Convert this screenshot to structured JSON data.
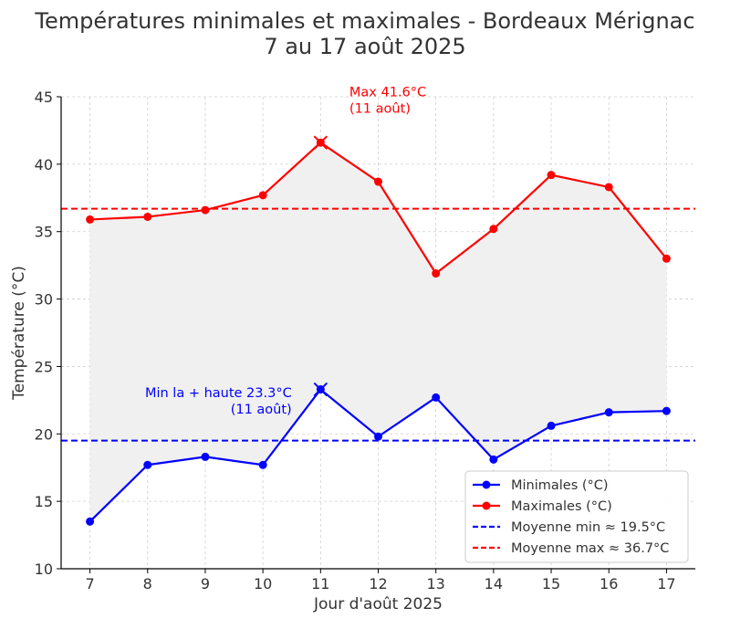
{
  "chart_data": {
    "type": "line",
    "title": "Températures minimales et maximales - Bordeaux Mérignac",
    "subtitle": "7 au 17 août 2025",
    "xlabel": "Jour d'août 2025",
    "ylabel": "Température (°C)",
    "x": [
      7,
      8,
      9,
      10,
      11,
      12,
      13,
      14,
      15,
      16,
      17
    ],
    "xlim": [
      6.5,
      17.5
    ],
    "ylim": [
      10,
      45
    ],
    "yticks": [
      10,
      15,
      20,
      25,
      30,
      35,
      40,
      45
    ],
    "grid": true,
    "series": [
      {
        "name": "Minimales (°C)",
        "color": "#0000ff",
        "marker": "circle",
        "values": [
          13.5,
          17.7,
          18.3,
          17.7,
          23.3,
          19.8,
          22.7,
          18.1,
          20.6,
          21.6,
          21.7
        ]
      },
      {
        "name": "Maximales (°C)",
        "color": "#ff0000",
        "marker": "circle",
        "values": [
          35.9,
          36.1,
          36.6,
          37.7,
          41.6,
          38.7,
          31.9,
          35.2,
          39.2,
          38.3,
          33.0
        ]
      }
    ],
    "fill_between": {
      "color": "#f0f0f0"
    },
    "reference_lines": [
      {
        "name": "Moyenne min ≈ 19.5°C",
        "value": 19.5,
        "color": "#0000ff",
        "style": "dashed"
      },
      {
        "name": "Moyenne max ≈ 36.7°C",
        "value": 36.7,
        "color": "#ff0000",
        "style": "dashed"
      }
    ],
    "annotations": [
      {
        "name": "max",
        "lines": [
          "Max 41.6°C",
          "(11 août)"
        ],
        "point": {
          "x": 11,
          "y": 41.6
        },
        "color": "#ff0000",
        "text_at": {
          "x": 11.5,
          "y": 43.8
        },
        "align": "left"
      },
      {
        "name": "min",
        "lines": [
          "Min la + haute 23.3°C",
          "(11 août)"
        ],
        "point": {
          "x": 11,
          "y": 23.3
        },
        "color": "#0000ff",
        "text_at": {
          "x": 10.5,
          "y": 21.5
        },
        "align": "right"
      }
    ],
    "legend_position": "bottom-right"
  }
}
